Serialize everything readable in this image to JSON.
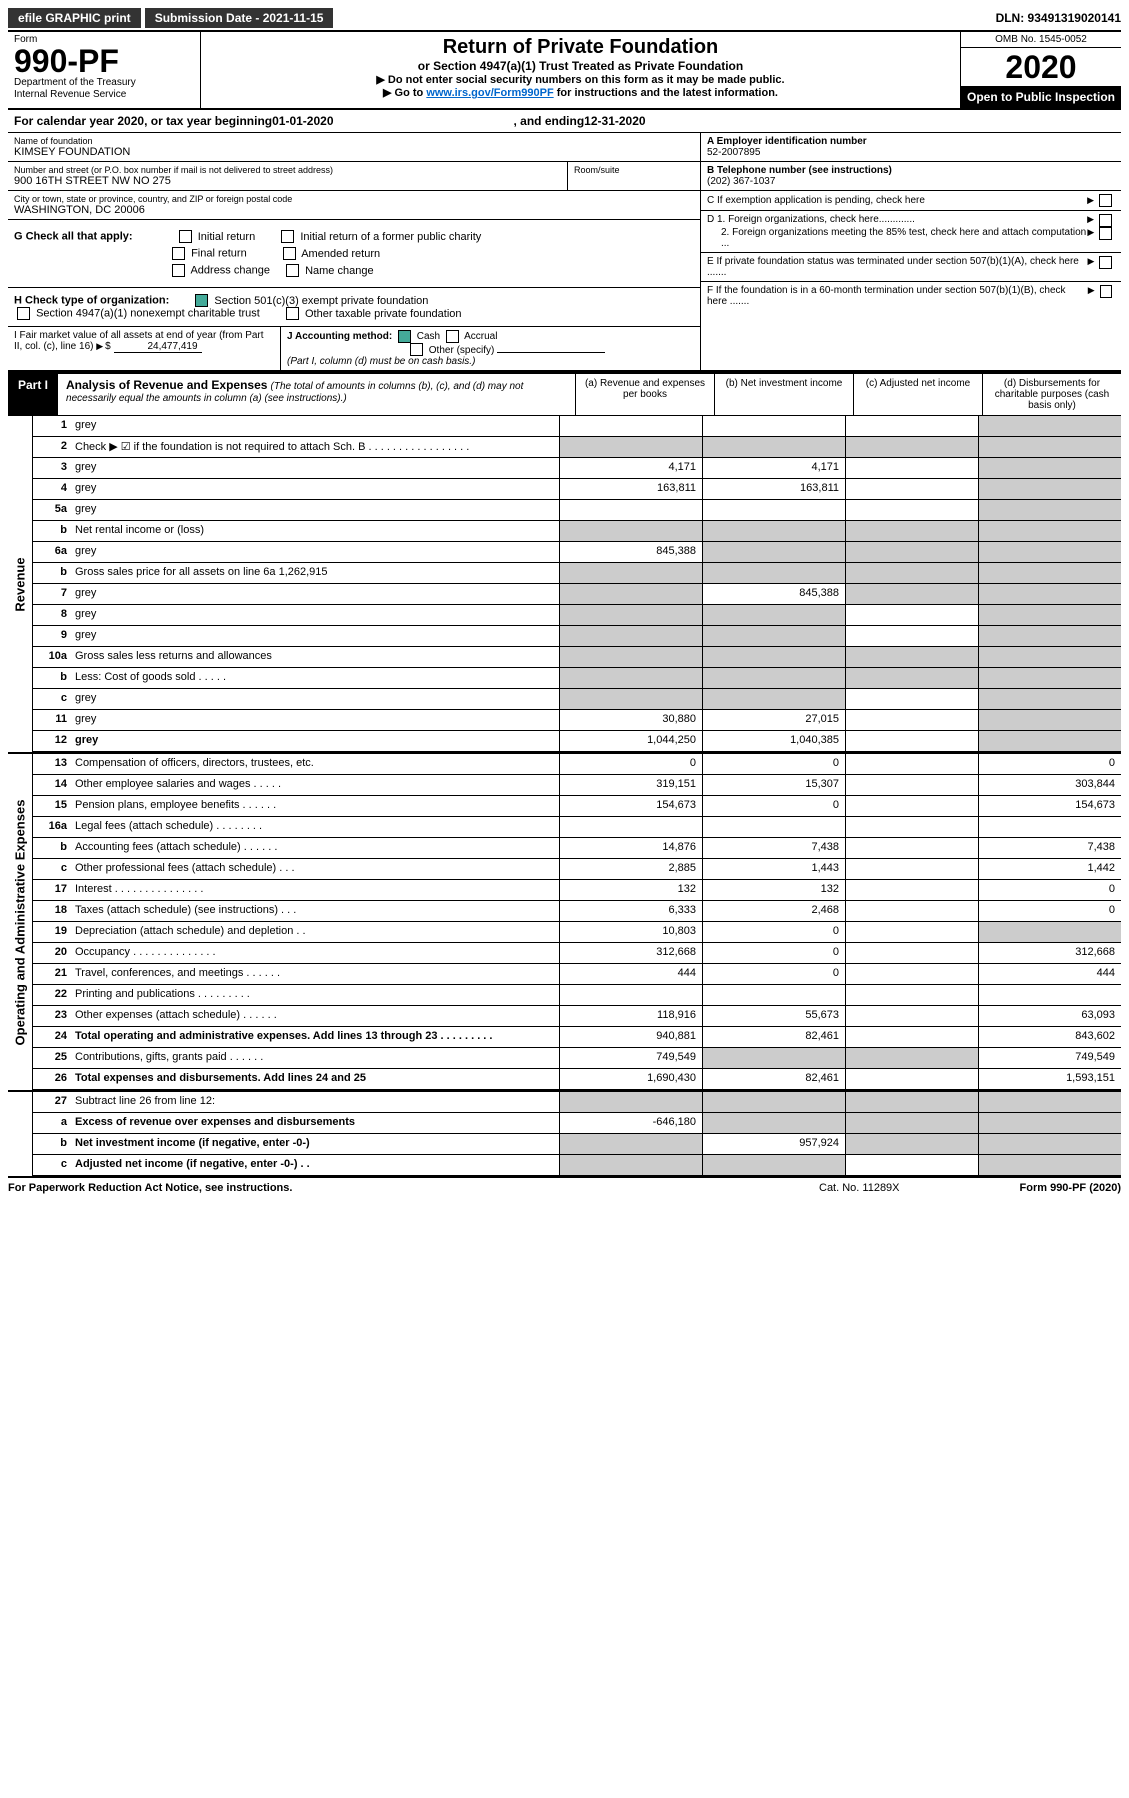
{
  "topbar": {
    "efile": "efile GRAPHIC print",
    "submission": "Submission Date - 2021-11-15",
    "dln": "DLN: 93491319020141"
  },
  "header": {
    "form_label": "Form",
    "form_num": "990-PF",
    "dept": "Department of the Treasury\nInternal Revenue Service",
    "title": "Return of Private Foundation",
    "subtitle": "or Section 4947(a)(1) Trust Treated as Private Foundation",
    "instr1": "▶ Do not enter social security numbers on this form as it may be made public.",
    "instr2_pre": "▶ Go to ",
    "instr2_link": "www.irs.gov/Form990PF",
    "instr2_post": " for instructions and the latest information.",
    "omb": "OMB No. 1545-0052",
    "year": "2020",
    "open": "Open to Public Inspection"
  },
  "calyear": {
    "pre": "For calendar year 2020, or tax year beginning ",
    "begin": "01-01-2020",
    "mid": ", and ending ",
    "end": "12-31-2020"
  },
  "info": {
    "name_label": "Name of foundation",
    "name": "KIMSEY FOUNDATION",
    "addr_label": "Number and street (or P.O. box number if mail is not delivered to street address)",
    "addr": "900 16TH STREET NW NO 275",
    "room_label": "Room/suite",
    "city_label": "City or town, state or province, country, and ZIP or foreign postal code",
    "city": "WASHINGTON, DC  20006",
    "ein_label": "A Employer identification number",
    "ein": "52-2007895",
    "tel_label": "B Telephone number (see instructions)",
    "tel": "(202) 367-1037",
    "c_label": "C If exemption application is pending, check here",
    "d1": "D 1. Foreign organizations, check here.............",
    "d2": "2. Foreign organizations meeting the 85% test, check here and attach computation ...",
    "e": "E If private foundation status was terminated under section 507(b)(1)(A), check here .......",
    "f": "F If the foundation is in a 60-month termination under section 507(b)(1)(B), check here .......",
    "g": "G Check all that apply:",
    "g_opts": [
      "Initial return",
      "Initial return of a former public charity",
      "Final return",
      "Amended return",
      "Address change",
      "Name change"
    ],
    "h": "H Check type of organization:",
    "h1": "Section 501(c)(3) exempt private foundation",
    "h2": "Section 4947(a)(1) nonexempt charitable trust",
    "h3": "Other taxable private foundation",
    "i_label": "I Fair market value of all assets at end of year (from Part II, col. (c), line 16)",
    "i_val": "24,477,419",
    "j": "J Accounting method:",
    "j_cash": "Cash",
    "j_accrual": "Accrual",
    "j_other": "Other (specify)",
    "j_note": "(Part I, column (d) must be on cash basis.)"
  },
  "part1": {
    "label": "Part I",
    "title": "Analysis of Revenue and Expenses",
    "title_note": "(The total of amounts in columns (b), (c), and (d) may not necessarily equal the amounts in column (a) (see instructions).)",
    "cols": {
      "a": "(a) Revenue and expenses per books",
      "b": "(b) Net investment income",
      "c": "(c) Adjusted net income",
      "d": "(d) Disbursements for charitable purposes (cash basis only)"
    }
  },
  "sections": {
    "revenue": "Revenue",
    "opex": "Operating and Administrative Expenses"
  },
  "rows": [
    {
      "n": "1",
      "d": "grey",
      "a": "",
      "b": "",
      "c": ""
    },
    {
      "n": "2",
      "d": "Check ▶ ☑ if the foundation is not required to attach Sch. B  . . . . . . . . . . . . . . . . .",
      "nb": true
    },
    {
      "n": "3",
      "d": "grey",
      "a": "4,171",
      "b": "4,171",
      "c": ""
    },
    {
      "n": "4",
      "d": "grey",
      "a": "163,811",
      "b": "163,811",
      "c": ""
    },
    {
      "n": "5a",
      "d": "grey",
      "a": "",
      "b": "",
      "c": ""
    },
    {
      "n": "b",
      "d": "Net rental income or (loss)",
      "nb": true
    },
    {
      "n": "6a",
      "d": "grey",
      "a": "845,388",
      "b": "grey",
      "c": "grey"
    },
    {
      "n": "b",
      "d": "Gross sales price for all assets on line 6a          1,262,915",
      "nb": true
    },
    {
      "n": "7",
      "d": "grey",
      "a": "grey",
      "b": "845,388",
      "c": "grey"
    },
    {
      "n": "8",
      "d": "grey",
      "a": "grey",
      "b": "grey",
      "c": ""
    },
    {
      "n": "9",
      "d": "grey",
      "a": "grey",
      "b": "grey",
      "c": ""
    },
    {
      "n": "10a",
      "d": "Gross sales less returns and allowances",
      "nb": true
    },
    {
      "n": "b",
      "d": "Less: Cost of goods sold  . . . . .",
      "nb": true
    },
    {
      "n": "c",
      "d": "grey",
      "a": "grey",
      "b": "grey",
      "c": ""
    },
    {
      "n": "11",
      "d": "grey",
      "a": "30,880",
      "b": "27,015",
      "c": ""
    },
    {
      "n": "12",
      "d": "grey",
      "bold": true,
      "a": "1,044,250",
      "b": "1,040,385",
      "c": ""
    }
  ],
  "oprows": [
    {
      "n": "13",
      "d": "Compensation of officers, directors, trustees, etc.",
      "a": "0",
      "b": "0",
      "c": "",
      "dd": "0"
    },
    {
      "n": "14",
      "d": "Other employee salaries and wages  . . . . .",
      "a": "319,151",
      "b": "15,307",
      "c": "",
      "dd": "303,844"
    },
    {
      "n": "15",
      "d": "Pension plans, employee benefits  . . . . . .",
      "a": "154,673",
      "b": "0",
      "c": "",
      "dd": "154,673"
    },
    {
      "n": "16a",
      "d": "Legal fees (attach schedule)  . . . . . . . .",
      "a": "",
      "b": "",
      "c": "",
      "dd": ""
    },
    {
      "n": "b",
      "d": "Accounting fees (attach schedule)  . . . . . .",
      "a": "14,876",
      "b": "7,438",
      "c": "",
      "dd": "7,438"
    },
    {
      "n": "c",
      "d": "Other professional fees (attach schedule)  . . .",
      "a": "2,885",
      "b": "1,443",
      "c": "",
      "dd": "1,442"
    },
    {
      "n": "17",
      "d": "Interest  . . . . . . . . . . . . . . .",
      "a": "132",
      "b": "132",
      "c": "",
      "dd": "0"
    },
    {
      "n": "18",
      "d": "Taxes (attach schedule) (see instructions)  . . .",
      "a": "6,333",
      "b": "2,468",
      "c": "",
      "dd": "0"
    },
    {
      "n": "19",
      "d": "Depreciation (attach schedule) and depletion  . .",
      "a": "10,803",
      "b": "0",
      "c": "",
      "dd": "grey"
    },
    {
      "n": "20",
      "d": "Occupancy  . . . . . . . . . . . . . .",
      "a": "312,668",
      "b": "0",
      "c": "",
      "dd": "312,668"
    },
    {
      "n": "21",
      "d": "Travel, conferences, and meetings  . . . . . .",
      "a": "444",
      "b": "0",
      "c": "",
      "dd": "444"
    },
    {
      "n": "22",
      "d": "Printing and publications  . . . . . . . . .",
      "a": "",
      "b": "",
      "c": "",
      "dd": ""
    },
    {
      "n": "23",
      "d": "Other expenses (attach schedule)  . . . . . .",
      "a": "118,916",
      "b": "55,673",
      "c": "",
      "dd": "63,093"
    },
    {
      "n": "24",
      "d": "Total operating and administrative expenses. Add lines 13 through 23  . . . . . . . . .",
      "bold": true,
      "a": "940,881",
      "b": "82,461",
      "c": "",
      "dd": "843,602"
    },
    {
      "n": "25",
      "d": "Contributions, gifts, grants paid  . . . . . .",
      "a": "749,549",
      "b": "grey",
      "c": "grey",
      "dd": "749,549"
    },
    {
      "n": "26",
      "d": "Total expenses and disbursements. Add lines 24 and 25",
      "bold": true,
      "a": "1,690,430",
      "b": "82,461",
      "c": "",
      "dd": "1,593,151"
    }
  ],
  "botrows": [
    {
      "n": "27",
      "d": "Subtract line 26 from line 12:",
      "a": "grey",
      "b": "grey",
      "c": "grey",
      "dd": "grey"
    },
    {
      "n": "a",
      "d": "Excess of revenue over expenses and disbursements",
      "bold": true,
      "a": "-646,180",
      "b": "grey",
      "c": "grey",
      "dd": "grey"
    },
    {
      "n": "b",
      "d": "Net investment income (if negative, enter -0-)",
      "bold": true,
      "a": "grey",
      "b": "957,924",
      "c": "grey",
      "dd": "grey"
    },
    {
      "n": "c",
      "d": "Adjusted net income (if negative, enter -0-)  . .",
      "bold": true,
      "a": "grey",
      "b": "grey",
      "c": "",
      "dd": "grey"
    }
  ],
  "footer": {
    "left": "For Paperwork Reduction Act Notice, see instructions.",
    "mid": "Cat. No. 11289X",
    "right": "Form 990-PF (2020)"
  }
}
